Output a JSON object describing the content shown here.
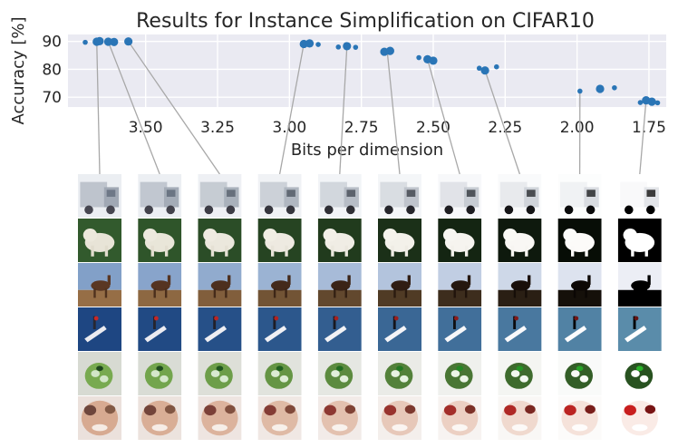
{
  "chart_data": {
    "type": "scatter",
    "title": "Results for Instance Simplification on CIFAR10",
    "xlabel": "Bits per dimension",
    "ylabel": "Accuracy [%]",
    "x_inverted": true,
    "xlim": [
      3.77,
      1.69
    ],
    "ylim": [
      66.5,
      92.5
    ],
    "xticks": [
      "3.50",
      "3.25",
      "3.00",
      "2.75",
      "2.50",
      "2.25",
      "2.00",
      "1.75"
    ],
    "yticks": [
      "70",
      "80",
      "90"
    ],
    "grid": true,
    "point_color": "#2a75b6",
    "background_color": "#eaeaf2",
    "points": [
      {
        "x": 3.71,
        "y": 89.7,
        "s": "small"
      },
      {
        "x": 3.67,
        "y": 89.9,
        "s": "large"
      },
      {
        "x": 3.66,
        "y": 90.1,
        "s": "large"
      },
      {
        "x": 3.63,
        "y": 89.9,
        "s": "large"
      },
      {
        "x": 3.61,
        "y": 89.8,
        "s": "large"
      },
      {
        "x": 3.56,
        "y": 90.0,
        "s": "large"
      },
      {
        "x": 2.95,
        "y": 89.1,
        "s": "large"
      },
      {
        "x": 2.93,
        "y": 89.3,
        "s": "large"
      },
      {
        "x": 2.9,
        "y": 88.9,
        "s": "small"
      },
      {
        "x": 2.83,
        "y": 88.0,
        "s": "small"
      },
      {
        "x": 2.8,
        "y": 88.3,
        "s": "large"
      },
      {
        "x": 2.77,
        "y": 87.9,
        "s": "small"
      },
      {
        "x": 2.67,
        "y": 86.3,
        "s": "large"
      },
      {
        "x": 2.65,
        "y": 86.6,
        "s": "large"
      },
      {
        "x": 2.55,
        "y": 84.2,
        "s": "small"
      },
      {
        "x": 2.52,
        "y": 83.6,
        "s": "large"
      },
      {
        "x": 2.5,
        "y": 83.1,
        "s": "large"
      },
      {
        "x": 2.34,
        "y": 80.4,
        "s": "small"
      },
      {
        "x": 2.32,
        "y": 79.6,
        "s": "large"
      },
      {
        "x": 2.28,
        "y": 80.9,
        "s": "small"
      },
      {
        "x": 1.99,
        "y": 72.2,
        "s": "small"
      },
      {
        "x": 1.92,
        "y": 73.0,
        "s": "large"
      },
      {
        "x": 1.87,
        "y": 73.4,
        "s": "small"
      },
      {
        "x": 1.78,
        "y": 68.1,
        "s": "small"
      },
      {
        "x": 1.76,
        "y": 68.9,
        "s": "large"
      },
      {
        "x": 1.74,
        "y": 68.4,
        "s": "large"
      },
      {
        "x": 1.72,
        "y": 68.0,
        "s": "small"
      }
    ],
    "callouts": [
      {
        "x": 3.67,
        "y": 89.9
      },
      {
        "x": 3.63,
        "y": 89.9
      },
      {
        "x": 3.56,
        "y": 90.0
      },
      {
        "x": 2.95,
        "y": 89.1
      },
      {
        "x": 2.8,
        "y": 88.3
      },
      {
        "x": 2.66,
        "y": 86.4
      },
      {
        "x": 2.52,
        "y": 83.6
      },
      {
        "x": 2.32,
        "y": 79.6
      },
      {
        "x": 1.99,
        "y": 72.2
      },
      {
        "x": 1.76,
        "y": 68.9
      }
    ],
    "image_grid": {
      "levels": 10,
      "rows": [
        "truck",
        "dog",
        "deer",
        "airplane",
        "frog",
        "cat"
      ]
    }
  }
}
